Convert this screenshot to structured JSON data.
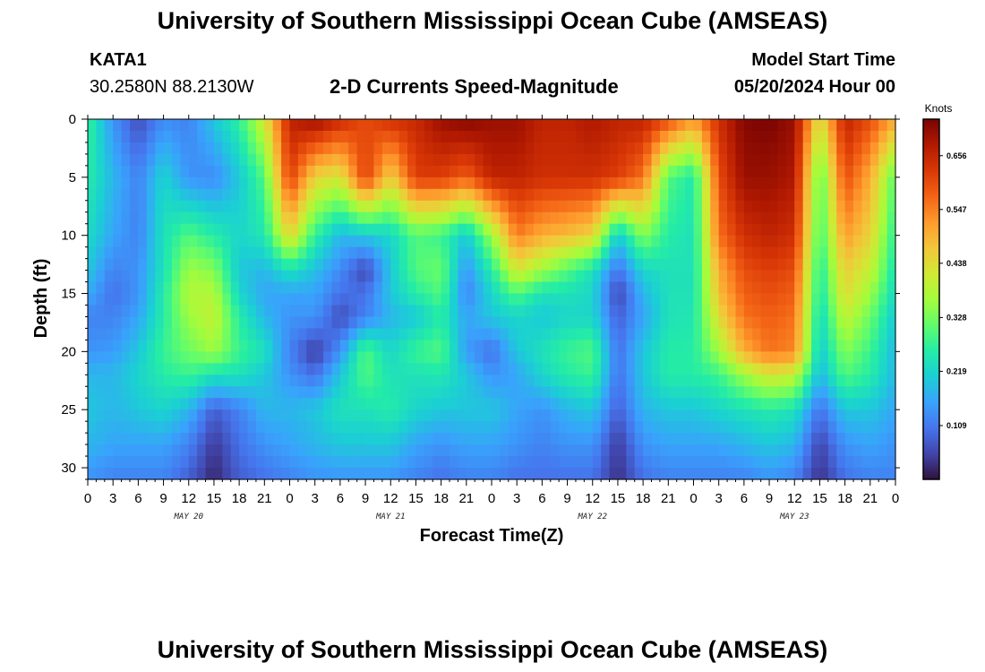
{
  "header": {
    "title": "University of Southern Mississippi Ocean Cube (AMSEAS)",
    "station": "KATA1",
    "coords": "30.2580N  88.2130W",
    "chart_title": "2-D Currents Speed-Magnitude",
    "start_label": "Model Start Time",
    "start_value": "05/20/2024 Hour 00"
  },
  "footer": {
    "title": "University of Southern Mississippi Ocean Cube (AMSEAS)"
  },
  "chart_data": {
    "type": "heatmap",
    "title": "2-D Currents Speed-Magnitude",
    "xlabel": "Forecast Time(Z)",
    "ylabel": "Depth (ft)",
    "x_range_hours": [
      0,
      96
    ],
    "y_range_ft": [
      0,
      31
    ],
    "x_ticks": [
      {
        "h": 0,
        "label": "0"
      },
      {
        "h": 3,
        "label": "3"
      },
      {
        "h": 6,
        "label": "6"
      },
      {
        "h": 9,
        "label": "9"
      },
      {
        "h": 12,
        "label": "12"
      },
      {
        "h": 15,
        "label": "15"
      },
      {
        "h": 18,
        "label": "18"
      },
      {
        "h": 21,
        "label": "21"
      },
      {
        "h": 24,
        "label": "0"
      },
      {
        "h": 27,
        "label": "3"
      },
      {
        "h": 30,
        "label": "6"
      },
      {
        "h": 33,
        "label": "9"
      },
      {
        "h": 36,
        "label": "12"
      },
      {
        "h": 39,
        "label": "15"
      },
      {
        "h": 42,
        "label": "18"
      },
      {
        "h": 45,
        "label": "21"
      },
      {
        "h": 48,
        "label": "0"
      },
      {
        "h": 51,
        "label": "3"
      },
      {
        "h": 54,
        "label": "6"
      },
      {
        "h": 57,
        "label": "9"
      },
      {
        "h": 60,
        "label": "12"
      },
      {
        "h": 63,
        "label": "15"
      },
      {
        "h": 66,
        "label": "18"
      },
      {
        "h": 69,
        "label": "21"
      },
      {
        "h": 72,
        "label": "0"
      },
      {
        "h": 75,
        "label": "3"
      },
      {
        "h": 78,
        "label": "6"
      },
      {
        "h": 81,
        "label": "9"
      },
      {
        "h": 84,
        "label": "12"
      },
      {
        "h": 87,
        "label": "15"
      },
      {
        "h": 90,
        "label": "18"
      },
      {
        "h": 93,
        "label": "21"
      },
      {
        "h": 96,
        "label": "0"
      }
    ],
    "date_labels": [
      {
        "h": 12,
        "label": "MAY 20"
      },
      {
        "h": 36,
        "label": "MAY 21"
      },
      {
        "h": 60,
        "label": "MAY 22"
      },
      {
        "h": 84,
        "label": "MAY 23"
      }
    ],
    "y_ticks": [
      0,
      5,
      10,
      15,
      20,
      25,
      30
    ],
    "colorbar": {
      "unit": "Knots",
      "min": 0.0,
      "max": 0.73,
      "ticks": [
        "0.109",
        "0.219",
        "0.328",
        "0.438",
        "0.547",
        "0.656"
      ],
      "colors": [
        "#30123b",
        "#4145ab",
        "#4675ed",
        "#39a2fc",
        "#1bcfd4",
        "#24eca6",
        "#61fc6c",
        "#a4fc3b",
        "#d1e834",
        "#f3c63a",
        "#fe9b2d",
        "#f36315",
        "#d93806",
        "#b11901",
        "#7a0402"
      ]
    },
    "speed_grid": {
      "columns_hours": [
        0,
        3,
        6,
        9,
        12,
        15,
        18,
        21,
        24,
        27,
        30,
        33,
        36,
        39,
        42,
        45,
        48,
        51,
        54,
        57,
        60,
        63,
        66,
        69,
        72,
        75,
        78,
        81,
        84,
        87,
        90,
        93,
        96
      ],
      "rows_ft": [
        0,
        5,
        10,
        13,
        15,
        17,
        20,
        22,
        25,
        28,
        31
      ],
      "knots": [
        [
          0.28,
          0.14,
          0.06,
          0.13,
          0.12,
          0.2,
          0.27,
          0.42,
          0.66,
          0.7,
          0.65,
          0.6,
          0.64,
          0.65,
          0.7,
          0.72,
          0.7,
          0.7,
          0.66,
          0.66,
          0.68,
          0.66,
          0.66,
          0.6,
          0.52,
          0.64,
          0.72,
          0.73,
          0.7,
          0.42,
          0.66,
          0.6,
          0.5
        ],
        [
          0.26,
          0.18,
          0.12,
          0.22,
          0.14,
          0.13,
          0.2,
          0.3,
          0.62,
          0.45,
          0.42,
          0.62,
          0.45,
          0.62,
          0.62,
          0.58,
          0.66,
          0.66,
          0.64,
          0.64,
          0.64,
          0.62,
          0.56,
          0.3,
          0.25,
          0.6,
          0.7,
          0.7,
          0.68,
          0.3,
          0.6,
          0.5,
          0.3
        ],
        [
          0.23,
          0.16,
          0.12,
          0.24,
          0.3,
          0.26,
          0.22,
          0.25,
          0.45,
          0.27,
          0.18,
          0.2,
          0.22,
          0.3,
          0.28,
          0.2,
          0.36,
          0.55,
          0.5,
          0.48,
          0.45,
          0.2,
          0.34,
          0.26,
          0.24,
          0.56,
          0.64,
          0.66,
          0.64,
          0.28,
          0.52,
          0.45,
          0.26
        ],
        [
          0.2,
          0.12,
          0.14,
          0.24,
          0.36,
          0.34,
          0.2,
          0.18,
          0.24,
          0.19,
          0.13,
          0.05,
          0.2,
          0.3,
          0.32,
          0.14,
          0.26,
          0.42,
          0.36,
          0.3,
          0.24,
          0.1,
          0.22,
          0.24,
          0.24,
          0.5,
          0.6,
          0.62,
          0.6,
          0.25,
          0.46,
          0.4,
          0.24
        ],
        [
          0.17,
          0.1,
          0.14,
          0.26,
          0.38,
          0.38,
          0.22,
          0.16,
          0.16,
          0.16,
          0.1,
          0.1,
          0.2,
          0.26,
          0.3,
          0.12,
          0.22,
          0.3,
          0.24,
          0.24,
          0.22,
          0.05,
          0.18,
          0.24,
          0.24,
          0.48,
          0.58,
          0.6,
          0.58,
          0.24,
          0.44,
          0.36,
          0.22
        ],
        [
          0.12,
          0.12,
          0.16,
          0.26,
          0.36,
          0.4,
          0.26,
          0.18,
          0.14,
          0.14,
          0.06,
          0.12,
          0.18,
          0.2,
          0.26,
          0.16,
          0.2,
          0.22,
          0.2,
          0.22,
          0.22,
          0.08,
          0.16,
          0.24,
          0.25,
          0.44,
          0.56,
          0.58,
          0.56,
          0.22,
          0.4,
          0.32,
          0.2
        ],
        [
          0.14,
          0.15,
          0.2,
          0.28,
          0.32,
          0.36,
          0.28,
          0.24,
          0.12,
          0.04,
          0.14,
          0.3,
          0.22,
          0.28,
          0.3,
          0.15,
          0.1,
          0.2,
          0.24,
          0.28,
          0.3,
          0.1,
          0.2,
          0.26,
          0.26,
          0.36,
          0.5,
          0.56,
          0.54,
          0.2,
          0.34,
          0.28,
          0.18
        ],
        [
          0.18,
          0.18,
          0.22,
          0.26,
          0.28,
          0.24,
          0.24,
          0.2,
          0.14,
          0.1,
          0.2,
          0.3,
          0.24,
          0.24,
          0.25,
          0.2,
          0.14,
          0.16,
          0.22,
          0.26,
          0.28,
          0.1,
          0.2,
          0.26,
          0.26,
          0.28,
          0.36,
          0.42,
          0.4,
          0.18,
          0.3,
          0.26,
          0.18
        ],
        [
          0.2,
          0.18,
          0.2,
          0.22,
          0.18,
          0.08,
          0.12,
          0.18,
          0.18,
          0.2,
          0.24,
          0.24,
          0.26,
          0.22,
          0.2,
          0.2,
          0.2,
          0.16,
          0.14,
          0.18,
          0.2,
          0.08,
          0.18,
          0.2,
          0.2,
          0.22,
          0.24,
          0.26,
          0.24,
          0.1,
          0.2,
          0.2,
          0.16
        ],
        [
          0.18,
          0.16,
          0.16,
          0.16,
          0.12,
          0.04,
          0.1,
          0.14,
          0.16,
          0.18,
          0.2,
          0.2,
          0.2,
          0.16,
          0.14,
          0.16,
          0.16,
          0.14,
          0.12,
          0.14,
          0.14,
          0.04,
          0.14,
          0.16,
          0.16,
          0.16,
          0.18,
          0.2,
          0.18,
          0.05,
          0.14,
          0.16,
          0.14
        ],
        [
          0.14,
          0.12,
          0.12,
          0.12,
          0.08,
          0.02,
          0.08,
          0.1,
          0.12,
          0.14,
          0.14,
          0.14,
          0.14,
          0.12,
          0.1,
          0.12,
          0.12,
          0.1,
          0.1,
          0.1,
          0.1,
          0.03,
          0.1,
          0.12,
          0.12,
          0.12,
          0.12,
          0.14,
          0.12,
          0.03,
          0.1,
          0.12,
          0.12
        ]
      ]
    }
  }
}
